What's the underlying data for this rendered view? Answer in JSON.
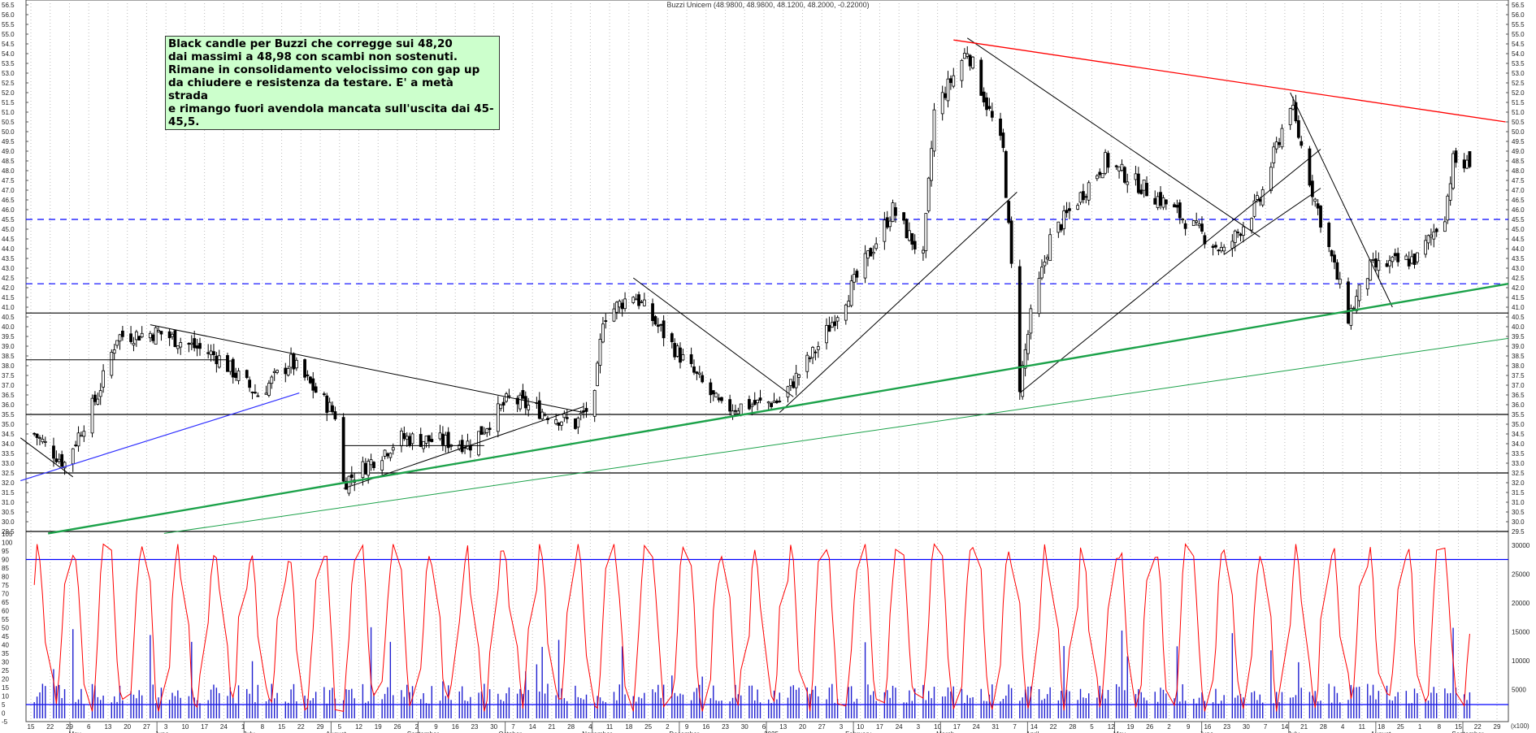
{
  "header": {
    "title": "Buzzi Unicem (48.9800, 48.9800, 48.1200, 48.2000, -0.22000)"
  },
  "annotation": {
    "text": "Black candle per Buzzi che corregge sui 48,20\ndai massimi a 48,98 con scambi non sostenuti.\nRimane in consolidamento velocissimo con gap up\nda chiudere e resistenza da testare. E' a metà strada\ne rimango fuori avendola mancata sull'uscita dai 45-45,5."
  },
  "volume_unit": "(x100)",
  "colors": {
    "price_up": "#ffffff",
    "price_down": "#000000",
    "stochastic": "#ff0000",
    "volume": "#1f1fd0",
    "bands": "#0000ff",
    "trend_green": "#1ca24a",
    "trend_red": "#ff0000"
  },
  "chart_data": [
    {
      "type": "candlestick",
      "series_name": "Buzzi Unicem",
      "ylim": [
        29.5,
        56.5
      ],
      "y_ticks": [
        "56.5",
        "56.0",
        "55.5",
        "55.0",
        "54.5",
        "54.0",
        "53.5",
        "53.0",
        "52.5",
        "52.0",
        "51.5",
        "51.0",
        "50.5",
        "50.0",
        "49.5",
        "49.0",
        "48.5",
        "48.0",
        "47.5",
        "47.0",
        "46.5",
        "46.0",
        "45.5",
        "45.0",
        "44.5",
        "44.0",
        "43.5",
        "43.0",
        "42.5",
        "42.0",
        "41.5",
        "41.0",
        "40.5",
        "40.0",
        "39.5",
        "39.0",
        "38.5",
        "38.0",
        "37.5",
        "37.0",
        "36.5",
        "36.0",
        "35.5",
        "35.0",
        "34.5",
        "34.0",
        "33.5",
        "33.0",
        "32.5",
        "32.0",
        "31.5",
        "31.0",
        "30.5",
        "30.0",
        "29.5"
      ],
      "x_day_labels": [
        "15",
        "22",
        "29",
        "6",
        "13",
        "20",
        "27",
        "3",
        "10",
        "17",
        "24",
        "1",
        "8",
        "15",
        "22",
        "29",
        "5",
        "12",
        "19",
        "26",
        "2",
        "9",
        "16",
        "23",
        "30",
        "7",
        "14",
        "21",
        "28",
        "4",
        "11",
        "18",
        "25",
        "2",
        "9",
        "16",
        "23",
        "30",
        "6",
        "13",
        "20",
        "27",
        "3",
        "10",
        "17",
        "24",
        "3",
        "10",
        "17",
        "24",
        "31",
        "7",
        "14",
        "22",
        "28",
        "5",
        "12",
        "19",
        "26",
        "2",
        "9",
        "16",
        "23",
        "30",
        "7",
        "14",
        "21",
        "28",
        "4",
        "11",
        "18",
        "25",
        "1",
        "8",
        "15",
        "22",
        "29"
      ],
      "x_month_labels": [
        "May",
        "June",
        "July",
        "August",
        "September",
        "October",
        "November",
        "December",
        "2025",
        "February",
        "March",
        "April",
        "May",
        "June",
        "July",
        "August",
        "September"
      ],
      "last": {
        "open": 48.98,
        "high": 48.98,
        "low": 48.12,
        "close": 48.2,
        "change": -0.22
      },
      "key_closes": [
        {
          "date": "2024-04-15",
          "close": 34.5
        },
        {
          "date": "2024-04-26",
          "close": 33.0
        },
        {
          "date": "2024-05-08",
          "close": 36.5
        },
        {
          "date": "2024-05-15",
          "close": 39.5
        },
        {
          "date": "2024-05-30",
          "close": 39.7
        },
        {
          "date": "2024-06-20",
          "close": 38.5
        },
        {
          "date": "2024-07-05",
          "close": 36.5
        },
        {
          "date": "2024-07-17",
          "close": 38.2
        },
        {
          "date": "2024-08-02",
          "close": 35.5
        },
        {
          "date": "2024-08-05",
          "close": 32.0
        },
        {
          "date": "2024-08-26",
          "close": 34.3
        },
        {
          "date": "2024-09-20",
          "close": 34.0
        },
        {
          "date": "2024-10-04",
          "close": 36.3
        },
        {
          "date": "2024-10-28",
          "close": 35.0
        },
        {
          "date": "2024-11-04",
          "close": 36.3
        },
        {
          "date": "2024-11-07",
          "close": 40.5
        },
        {
          "date": "2024-11-18",
          "close": 41.7
        },
        {
          "date": "2024-12-05",
          "close": 38.5
        },
        {
          "date": "2024-12-20",
          "close": 35.8
        },
        {
          "date": "2025-01-10",
          "close": 36.2
        },
        {
          "date": "2025-01-24",
          "close": 39.0
        },
        {
          "date": "2025-02-07",
          "close": 42.5
        },
        {
          "date": "2025-02-20",
          "close": 46.0
        },
        {
          "date": "2025-03-03",
          "close": 43.5
        },
        {
          "date": "2025-03-07",
          "close": 51.0
        },
        {
          "date": "2025-03-19",
          "close": 54.2
        },
        {
          "date": "2025-04-01",
          "close": 49.0
        },
        {
          "date": "2025-04-07",
          "close": 37.0
        },
        {
          "date": "2025-04-11",
          "close": 40.5
        },
        {
          "date": "2025-04-18",
          "close": 44.5
        },
        {
          "date": "2025-05-08",
          "close": 48.5
        },
        {
          "date": "2025-05-30",
          "close": 46.3
        },
        {
          "date": "2025-06-20",
          "close": 43.8
        },
        {
          "date": "2025-07-03",
          "close": 46.5
        },
        {
          "date": "2025-07-14",
          "close": 51.5
        },
        {
          "date": "2025-07-22",
          "close": 47.0
        },
        {
          "date": "2025-08-04",
          "close": 40.5
        },
        {
          "date": "2025-08-12",
          "close": 43.0
        },
        {
          "date": "2025-08-29",
          "close": 43.5
        },
        {
          "date": "2025-09-08",
          "close": 45.8
        },
        {
          "date": "2025-09-11",
          "close": 48.5
        },
        {
          "date": "2025-09-16",
          "close": 48.2
        }
      ],
      "horizontal_levels": [
        {
          "value": 42.2,
          "style": "dashed",
          "color": "#0000ff"
        },
        {
          "value": 45.5,
          "style": "dashed",
          "color": "#0000ff"
        },
        {
          "value": 40.7,
          "style": "solid",
          "color": "#000000"
        },
        {
          "value": 35.5,
          "style": "solid",
          "color": "#000000"
        },
        {
          "value": 32.5,
          "style": "solid",
          "color": "#000000"
        },
        {
          "value": 29.5,
          "style": "solid",
          "color": "#000000"
        }
      ]
    },
    {
      "type": "line+bar",
      "series": [
        {
          "kind": "stochastic",
          "ylim": [
            -5,
            105
          ],
          "upper_band": 90,
          "lower_band": 5
        },
        {
          "kind": "volume",
          "scale_max": 30000,
          "unit": "(x100)"
        }
      ],
      "y_ticks": [
        "105",
        "100",
        "95",
        "90",
        "85",
        "80",
        "75",
        "70",
        "65",
        "60",
        "55",
        "50",
        "45",
        "40",
        "35",
        "30",
        "25",
        "20",
        "15",
        "10",
        "5",
        "0",
        "-5"
      ],
      "vol_ticks": [
        "30000",
        "25000",
        "20000",
        "15000",
        "10000",
        "5000"
      ]
    }
  ]
}
